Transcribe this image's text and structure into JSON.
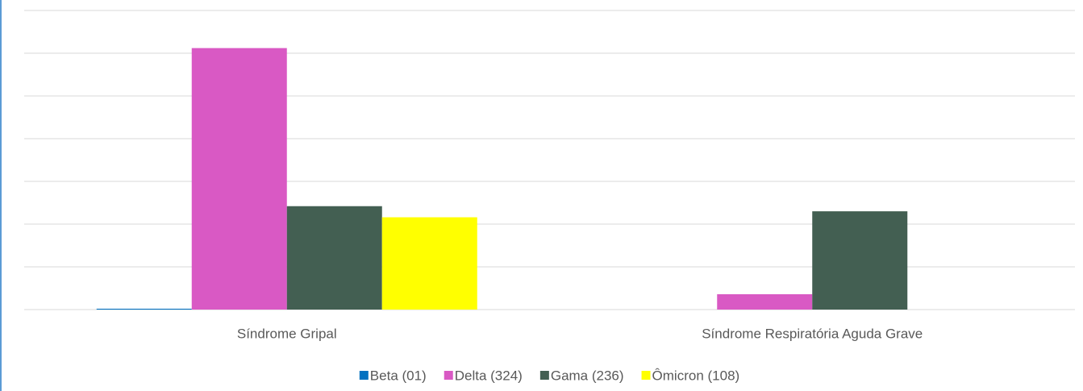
{
  "chart_data": {
    "type": "bar",
    "categories": [
      "Síndrome Gripal",
      "Síndrome Respiratória Aguda Grave"
    ],
    "series": [
      {
        "name": "Beta (01)",
        "color": "#0070c0",
        "values": [
          1,
          0
        ]
      },
      {
        "name": "Delta (324)",
        "color": "#d959c4",
        "values": [
          306,
          18
        ]
      },
      {
        "name": "Gama (236)",
        "color": "#435f52",
        "values": [
          121,
          115
        ]
      },
      {
        "name": "Ômicron (108)",
        "color": "#ffff00",
        "values": [
          108,
          0
        ]
      }
    ],
    "ylim": [
      0,
      350
    ],
    "yticks": [
      0,
      50,
      100,
      150,
      200,
      250,
      300,
      350
    ],
    "grid": true
  }
}
